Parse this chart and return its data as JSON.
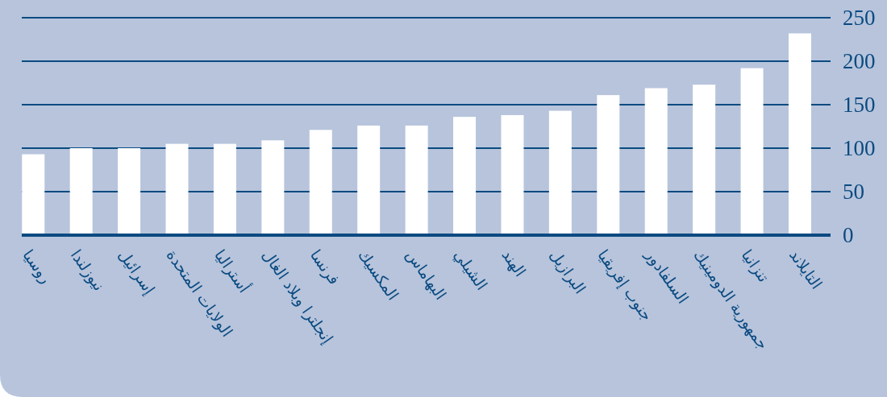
{
  "chart_data": {
    "type": "bar",
    "categories": [
      "روسيا",
      "نيوزلندا",
      "إسرائيل",
      "الولايات المتحدة",
      "أستراليا",
      "إنجلترا وبلاد الغال",
      "فرنسا",
      "المكسيك",
      "البهاماس",
      "الشيلي",
      "الهند",
      "البرازيل",
      "جنوب إفريقيا",
      "السلفادور",
      "جمهورية الدومينيك",
      "تنزانيا",
      "التايلاند"
    ],
    "values": [
      93,
      100,
      100,
      105,
      105,
      109,
      121,
      126,
      126,
      136,
      138,
      143,
      161,
      169,
      173,
      192,
      232
    ],
    "color": "#ffffff",
    "ylim": [
      0,
      250
    ],
    "yticks": [
      0,
      50,
      100,
      150,
      200,
      250
    ],
    "grid": "y"
  }
}
